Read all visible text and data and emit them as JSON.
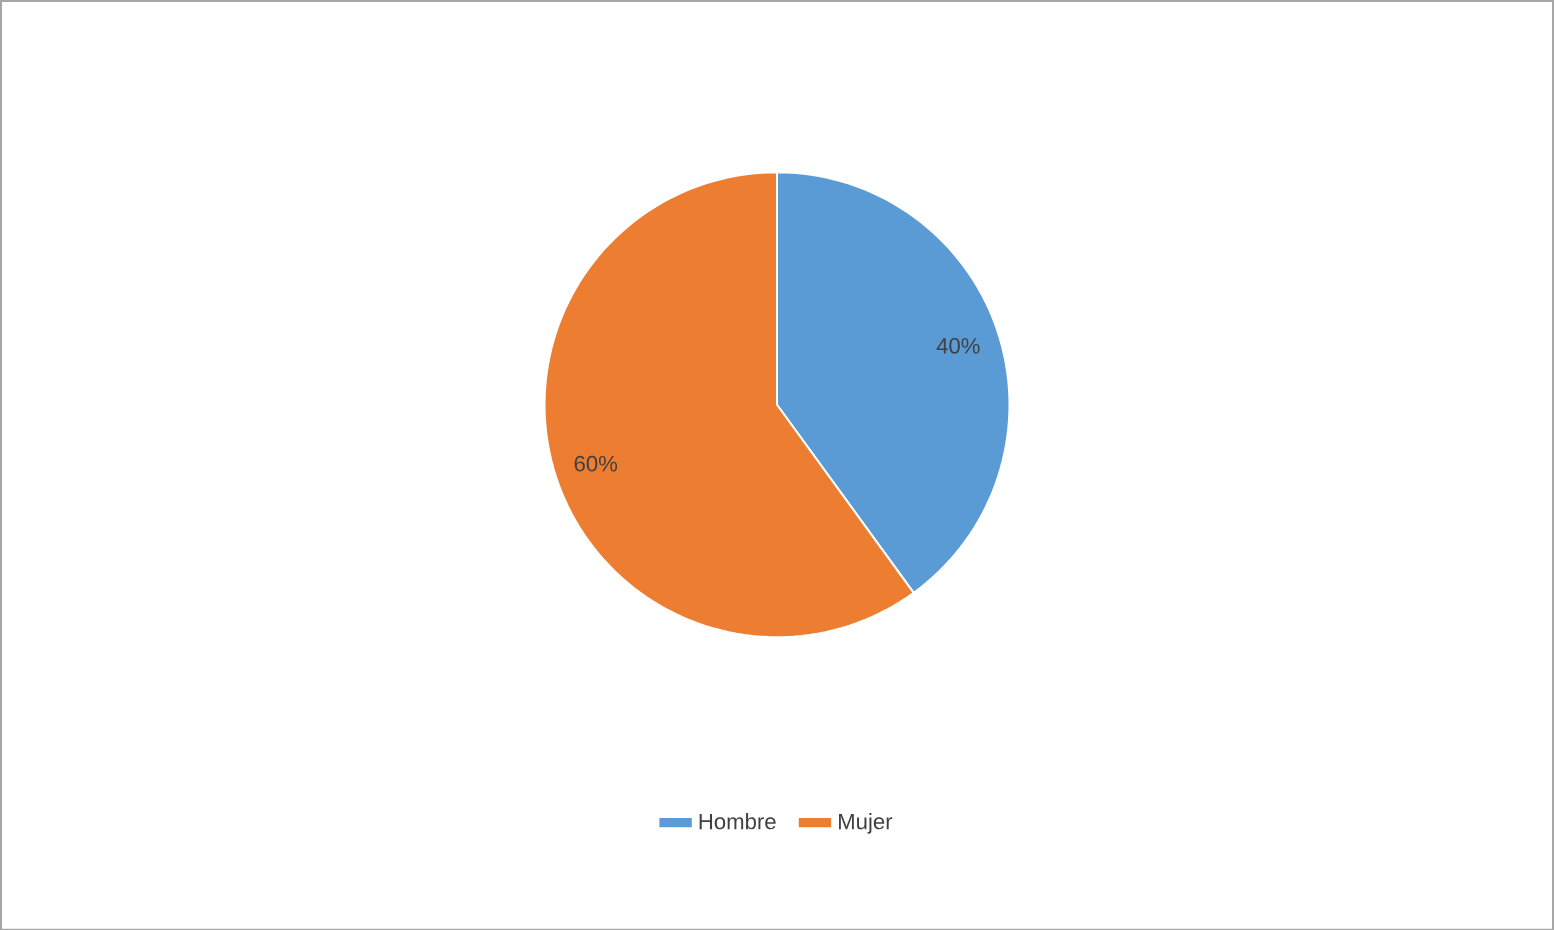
{
  "chart_data": {
    "type": "pie",
    "categories": [
      "Hombre",
      "Mujer"
    ],
    "values": [
      40,
      60
    ],
    "colors": [
      "#5b9bd5",
      "#ed7d31"
    ],
    "value_labels": [
      "40%",
      "60%"
    ],
    "legend": "bottom"
  }
}
